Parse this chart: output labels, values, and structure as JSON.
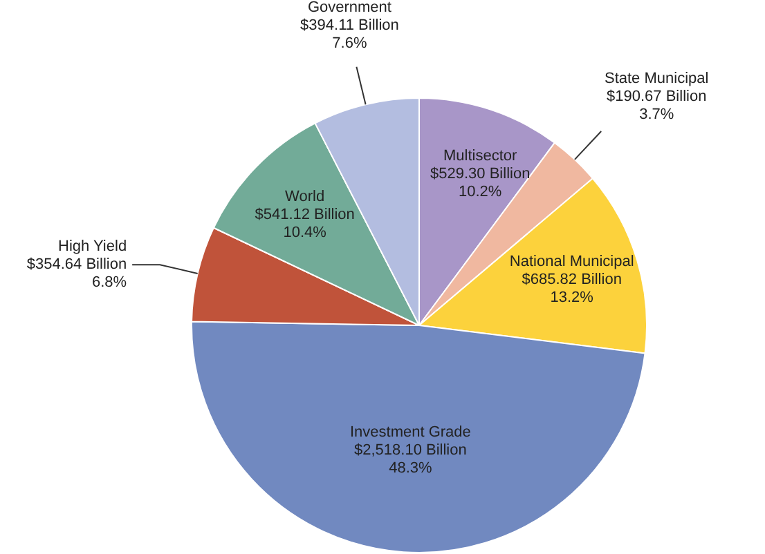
{
  "chart_data": {
    "type": "pie",
    "categories": [
      "Multisector",
      "State Municipal",
      "National Municipal",
      "Investment Grade",
      "High Yield",
      "World",
      "Government"
    ],
    "values": [
      529.3,
      190.67,
      685.82,
      2518.1,
      354.64,
      541.12,
      394.11
    ],
    "value_labels": [
      "$529.30 Billion\n10.2%",
      "$190.67 Billion\n3.7%",
      "$685.82 Billion\n13.2%",
      "$2,518.10 Billion\n48.3%",
      "$354.64 Billion\n6.8%",
      "$541.12 Billion\n10.4%",
      "$394.11 Billion\n7.6%"
    ],
    "colors": [
      "#a896c8",
      "#f0b8a0",
      "#fcd23c",
      "#7189c0",
      "#c0533a",
      "#72ab98",
      "#b3bde0"
    ],
    "legend": false
  }
}
